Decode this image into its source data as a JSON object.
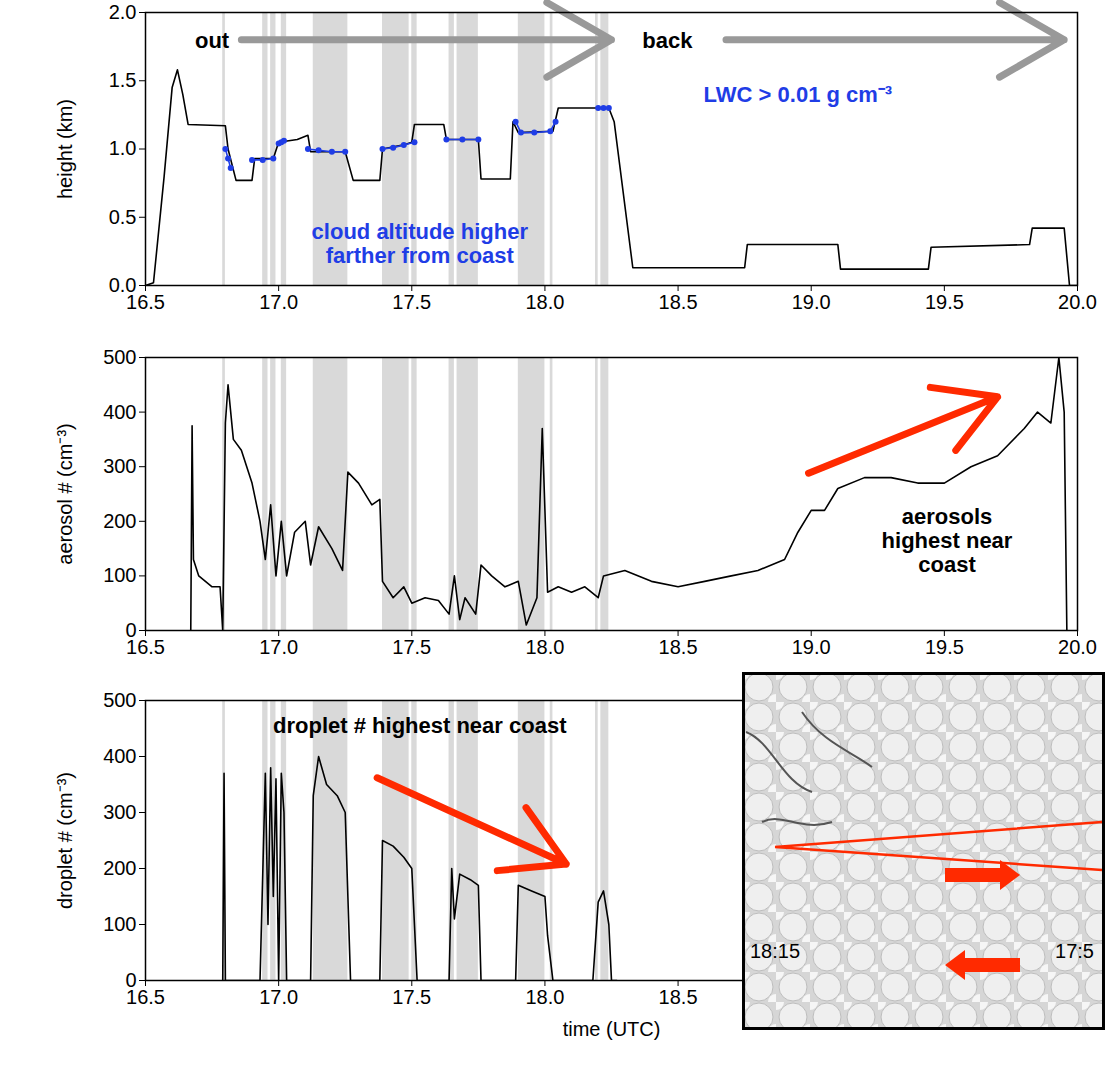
{
  "chart_data": [
    {
      "type": "line",
      "ylabel": "height (km)",
      "xlim": [
        16.5,
        20.0
      ],
      "ylim": [
        0,
        2.0
      ],
      "xticks": [
        16.5,
        {
          "value": 17,
          "label": "17.0"
        },
        17.5,
        {
          "value": 18,
          "label": "18.0"
        },
        18.5,
        {
          "value": 19,
          "label": "19.0"
        },
        19.5,
        {
          "value": 20,
          "label": "20.0"
        }
      ],
      "yticks": [
        {
          "value": 0,
          "label": "0.0"
        },
        0.5,
        {
          "value": 1,
          "label": "1.0"
        },
        1.5,
        {
          "value": 2,
          "label": "2.0"
        }
      ],
      "shaded": [
        [
          16.79,
          16.8
        ],
        [
          16.94,
          16.96
        ],
        [
          16.97,
          16.99
        ],
        [
          17.01,
          17.03
        ],
        [
          17.13,
          17.26
        ],
        [
          17.39,
          17.49
        ],
        [
          17.5,
          17.52
        ],
        [
          17.64,
          17.66
        ],
        [
          17.67,
          17.75
        ],
        [
          17.9,
          18.0
        ],
        [
          18.02,
          18.03
        ],
        [
          18.19,
          18.2
        ],
        [
          18.21,
          18.24
        ]
      ],
      "series": [
        {
          "color": "#000000",
          "x": [
            16.5,
            16.53,
            16.57,
            16.6,
            16.62,
            16.64,
            16.66,
            16.8,
            16.81,
            16.84,
            16.9,
            16.91,
            16.98,
            17.0,
            17.07,
            17.11,
            17.12,
            17.25,
            17.28,
            17.38,
            17.39,
            17.47,
            17.5,
            17.51,
            17.62,
            17.63,
            17.75,
            17.76,
            17.87,
            17.88,
            17.9,
            18.03,
            18.05,
            18.24,
            18.26,
            18.33,
            18.75,
            18.76,
            19.1,
            19.11,
            19.44,
            19.45,
            19.82,
            19.83,
            19.95,
            19.97,
            20.0
          ],
          "values": [
            0,
            0.02,
            0.8,
            1.45,
            1.58,
            1.4,
            1.18,
            1.17,
            1.0,
            0.77,
            0.77,
            0.93,
            0.93,
            1.05,
            1.07,
            1.1,
            0.98,
            0.98,
            0.77,
            0.77,
            1.0,
            1.03,
            1.05,
            1.18,
            1.18,
            1.07,
            1.07,
            0.78,
            0.78,
            1.2,
            1.12,
            1.13,
            1.3,
            1.3,
            1.2,
            0.13,
            0.13,
            0.3,
            0.3,
            0.12,
            0.12,
            0.28,
            0.3,
            0.42,
            0.42,
            0.0,
            0
          ]
        },
        {
          "color": "#1f3de6",
          "marker": "dot",
          "x": [
            16.8,
            16.81,
            16.82,
            16.86,
            16.9,
            16.94,
            16.98,
            16.99,
            17.0,
            17.01,
            17.02,
            17.06,
            17.11,
            17.15,
            17.2,
            17.25,
            17.32,
            17.39,
            17.43,
            17.47,
            17.51,
            17.57,
            17.63,
            17.69,
            17.75,
            17.82,
            17.89,
            17.91,
            17.96,
            18.02,
            18.04,
            18.12,
            18.2,
            18.22,
            18.24
          ],
          "values": [
            1.0,
            0.93,
            0.86,
            null,
            0.92,
            0.92,
            0.93,
            null,
            1.04,
            1.05,
            1.06,
            null,
            1.0,
            0.99,
            0.98,
            0.98,
            null,
            1.0,
            1.01,
            1.03,
            1.05,
            null,
            1.07,
            1.07,
            1.07,
            null,
            1.2,
            1.12,
            1.12,
            1.13,
            1.2,
            null,
            1.3,
            1.3,
            1.3
          ]
        }
      ],
      "annotations": [
        {
          "text": "out",
          "x": 16.75,
          "y": 1.8,
          "color": "#000000"
        },
        {
          "text": "back",
          "x": 18.46,
          "y": 1.8,
          "color": "#000000"
        },
        {
          "text": "LWC > 0.01 g cm⁻³",
          "x": 18.95,
          "y": 1.4,
          "color": "#1f3de6"
        },
        {
          "text": "cloud altitude higher\nfarther from coast",
          "x": 17.53,
          "y": 0.31,
          "color": "#1f3de6"
        }
      ],
      "arrows": [
        {
          "x1": 16.86,
          "y1": 1.8,
          "x2": 18.25,
          "y2": 1.8,
          "color": "#999999"
        },
        {
          "x1": 18.68,
          "y1": 1.8,
          "x2": 19.95,
          "y2": 1.8,
          "color": "#999999"
        }
      ]
    },
    {
      "type": "line",
      "ylabel": "aerosol # (cm⁻³)",
      "xlim": [
        16.5,
        20.0
      ],
      "ylim": [
        0,
        500
      ],
      "xticks": [
        16.5,
        {
          "value": 17,
          "label": "17.0"
        },
        17.5,
        {
          "value": 18,
          "label": "18.0"
        },
        18.5,
        {
          "value": 19,
          "label": "19.0"
        },
        19.5,
        {
          "value": 20,
          "label": "20.0"
        }
      ],
      "yticks": [
        0,
        100,
        200,
        300,
        400,
        500
      ],
      "shaded": [
        [
          16.79,
          16.8
        ],
        [
          16.94,
          16.96
        ],
        [
          16.97,
          16.99
        ],
        [
          17.01,
          17.03
        ],
        [
          17.13,
          17.26
        ],
        [
          17.39,
          17.49
        ],
        [
          17.5,
          17.52
        ],
        [
          17.64,
          17.66
        ],
        [
          17.67,
          17.75
        ],
        [
          17.9,
          18.0
        ],
        [
          18.02,
          18.03
        ],
        [
          18.19,
          18.2
        ],
        [
          18.21,
          18.24
        ]
      ],
      "series": [
        {
          "color": "#000000",
          "x": [
            16.67,
            16.675,
            16.68,
            16.7,
            16.75,
            16.78,
            16.79,
            16.8,
            16.81,
            16.83,
            16.86,
            16.9,
            16.93,
            16.95,
            16.97,
            16.99,
            17.01,
            17.03,
            17.06,
            17.1,
            17.12,
            17.15,
            17.2,
            17.24,
            17.26,
            17.3,
            17.35,
            17.38,
            17.39,
            17.43,
            17.47,
            17.5,
            17.55,
            17.6,
            17.64,
            17.66,
            17.68,
            17.7,
            17.74,
            17.76,
            17.8,
            17.85,
            17.9,
            17.93,
            17.97,
            17.99,
            18.01,
            18.05,
            18.1,
            18.15,
            18.2,
            18.22,
            18.3,
            18.4,
            18.5,
            18.6,
            18.7,
            18.8,
            18.9,
            18.95,
            19.0,
            19.05,
            19.1,
            19.2,
            19.3,
            19.4,
            19.5,
            19.6,
            19.7,
            19.8,
            19.85,
            19.9,
            19.93,
            19.95,
            19.96
          ],
          "values": [
            0,
            375,
            130,
            100,
            80,
            80,
            0,
            380,
            450,
            350,
            330,
            270,
            200,
            130,
            230,
            100,
            200,
            100,
            180,
            200,
            120,
            190,
            150,
            110,
            290,
            270,
            230,
            240,
            90,
            60,
            80,
            50,
            60,
            55,
            30,
            100,
            20,
            60,
            30,
            120,
            100,
            80,
            90,
            10,
            60,
            370,
            70,
            80,
            70,
            80,
            60,
            100,
            110,
            90,
            80,
            90,
            100,
            110,
            130,
            180,
            220,
            220,
            260,
            280,
            280,
            270,
            270,
            300,
            320,
            370,
            400,
            380,
            500,
            400,
            0
          ]
        }
      ],
      "annotations": [
        {
          "text": "aerosols\nhighest near\ncoast",
          "x": 19.51,
          "y": 165,
          "color": "#000000"
        }
      ],
      "arrows": [
        {
          "x1": 18.99,
          "y1": 288,
          "x2": 19.7,
          "y2": 428,
          "color": "#ff2a00"
        }
      ]
    },
    {
      "type": "line",
      "ylabel": "droplet # (cm⁻³)",
      "xlabel": "time (UTC)",
      "xlim": [
        16.5,
        20.0
      ],
      "ylim": [
        0,
        500
      ],
      "xticks": [
        16.5,
        {
          "value": 17,
          "label": "17.0"
        },
        17.5,
        {
          "value": 18,
          "label": "18.0"
        },
        18.5
      ],
      "yticks": [
        0,
        100,
        200,
        300,
        400,
        500
      ],
      "shaded": [
        [
          16.79,
          16.8
        ],
        [
          16.94,
          16.96
        ],
        [
          16.97,
          16.99
        ],
        [
          17.01,
          17.03
        ],
        [
          17.13,
          17.26
        ],
        [
          17.39,
          17.49
        ],
        [
          17.5,
          17.52
        ],
        [
          17.64,
          17.66
        ],
        [
          17.67,
          17.75
        ],
        [
          17.9,
          18.0
        ],
        [
          18.02,
          18.03
        ],
        [
          18.19,
          18.2
        ],
        [
          18.21,
          18.24
        ]
      ],
      "series": [
        {
          "color": "#000000",
          "x": [
            16.79,
            16.795,
            16.8,
            16.93,
            16.95,
            16.96,
            16.97,
            16.98,
            16.99,
            17.0,
            17.01,
            17.02,
            17.03,
            17.12,
            17.13,
            17.15,
            17.18,
            17.22,
            17.25,
            17.27,
            17.38,
            17.39,
            17.43,
            17.47,
            17.5,
            17.52,
            17.64,
            17.65,
            17.66,
            17.68,
            17.72,
            17.75,
            17.76,
            17.89,
            17.9,
            17.95,
            18.0,
            18.01,
            18.03,
            18.18,
            18.2,
            18.22,
            18.24,
            18.25,
            18.27
          ],
          "values": [
            0,
            370,
            0,
            0,
            370,
            100,
            380,
            150,
            360,
            0,
            370,
            300,
            0,
            0,
            330,
            400,
            350,
            330,
            300,
            0,
            0,
            250,
            240,
            220,
            200,
            0,
            0,
            200,
            110,
            190,
            180,
            170,
            0,
            0,
            170,
            160,
            150,
            80,
            0,
            0,
            140,
            160,
            100,
            0,
            0
          ]
        }
      ],
      "annotations": [
        {
          "text": "droplet # highest near coast",
          "x": 17.53,
          "y": 455,
          "color": "#000000"
        }
      ],
      "arrows": [
        {
          "x1": 17.37,
          "y1": 362,
          "x2": 18.08,
          "y2": 208,
          "color": "#ff2a00"
        }
      ],
      "inset_labels": [
        "18:15",
        "17:5"
      ]
    }
  ]
}
